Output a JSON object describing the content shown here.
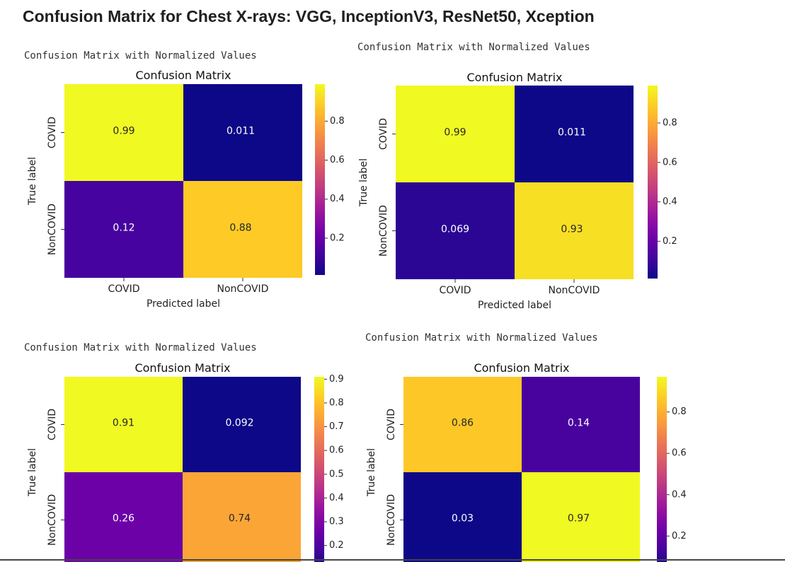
{
  "page": {
    "title": "Confusion Matrix for Chest X-rays: VGG, InceptionV3, ResNet50, Xception"
  },
  "chart_data": [
    {
      "type": "heatmap",
      "caption": "Confusion Matrix with Normalized Values",
      "title": "Confusion Matrix",
      "xlabel": "Predicted label",
      "ylabel": "True label",
      "x_categories": [
        "COVID",
        "NonCOVID"
      ],
      "y_categories": [
        "COVID",
        "NonCOVID"
      ],
      "values": [
        [
          0.99,
          0.011
        ],
        [
          0.12,
          0.88
        ]
      ],
      "cell_labels": [
        [
          "0.99",
          "0.011"
        ],
        [
          "0.12",
          "0.88"
        ]
      ],
      "colormap": "plasma",
      "colorbar_range": [
        0.011,
        0.99
      ],
      "colorbar_ticks": [
        0.2,
        0.4,
        0.6,
        0.8
      ]
    },
    {
      "type": "heatmap",
      "caption": "Confusion Matrix with Normalized Values",
      "title": "Confusion Matrix",
      "xlabel": "Predicted label",
      "ylabel": "True label",
      "x_categories": [
        "COVID",
        "NonCOVID"
      ],
      "y_categories": [
        "COVID",
        "NonCOVID"
      ],
      "values": [
        [
          0.99,
          0.011
        ],
        [
          0.069,
          0.93
        ]
      ],
      "cell_labels": [
        [
          "0.99",
          "0.011"
        ],
        [
          "0.069",
          "0.93"
        ]
      ],
      "colormap": "plasma",
      "colorbar_range": [
        0.011,
        0.99
      ],
      "colorbar_ticks": [
        0.2,
        0.4,
        0.6,
        0.8
      ]
    },
    {
      "type": "heatmap",
      "caption": "Confusion Matrix with Normalized Values",
      "title": "Confusion Matrix",
      "xlabel": "",
      "ylabel": "True label",
      "x_categories": [],
      "y_categories": [
        "COVID",
        "NonCOVID"
      ],
      "values": [
        [
          0.91,
          0.092
        ],
        [
          0.26,
          0.74
        ]
      ],
      "cell_labels": [
        [
          "0.91",
          "0.092"
        ],
        [
          "0.26",
          "0.74"
        ]
      ],
      "colormap": "plasma",
      "colorbar_range": [
        0.092,
        0.91
      ],
      "colorbar_ticks": [
        0.2,
        0.3,
        0.4,
        0.5,
        0.6,
        0.7,
        0.8,
        0.9
      ]
    },
    {
      "type": "heatmap",
      "caption": "Confusion Matrix with Normalized Values",
      "title": "Confusion Matrix",
      "xlabel": "",
      "ylabel": "True label",
      "x_categories": [],
      "y_categories": [
        "COVID",
        "NonCOVID"
      ],
      "values": [
        [
          0.86,
          0.14
        ],
        [
          0.03,
          0.97
        ]
      ],
      "cell_labels": [
        [
          "0.86",
          "0.14"
        ],
        [
          "0.03",
          "0.97"
        ]
      ],
      "colormap": "plasma",
      "colorbar_range": [
        0.03,
        0.97
      ],
      "colorbar_ticks": [
        0.2,
        0.4,
        0.6,
        0.8
      ]
    }
  ]
}
